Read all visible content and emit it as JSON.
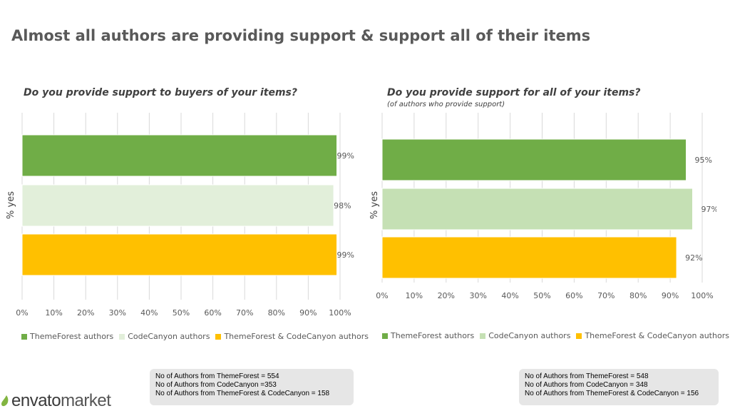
{
  "page_title": "Almost all authors are providing support & support all of their items",
  "colors": {
    "themeforest": "#70ad47",
    "codecanyon_left": "#e2efda",
    "codecanyon_right": "#c5e0b4",
    "both": "#ffc000",
    "grid": "#d9d9d9"
  },
  "logo": {
    "word1": "envato",
    "word2": "market"
  },
  "charts": [
    {
      "title": "Do you provide support to buyers of your items?",
      "subtitle": "",
      "ylabel": "% yes",
      "notes": [
        "No of Authors from ThemeForest = 554",
        "No of Authors from CodeCanyon =353",
        "No of Authors from ThemeForest & CodeCanyon = 158"
      ]
    },
    {
      "title": "Do you provide support for all of your items?",
      "subtitle": "(of authors who provide support)",
      "ylabel": "% yes",
      "notes": [
        "No of Authors from ThemeForest = 548",
        "No of Authors from CodeCanyon = 348",
        "No of Authors from ThemeForest & CodeCanyon = 156"
      ]
    }
  ],
  "chart_data": [
    {
      "type": "bar",
      "orientation": "horizontal",
      "title": "Do you provide support to buyers of your items?",
      "ylabel": "% yes",
      "xlim": [
        0,
        100
      ],
      "xticks": [
        "0%",
        "10%",
        "20%",
        "30%",
        "40%",
        "50%",
        "60%",
        "70%",
        "80%",
        "90%",
        "100%"
      ],
      "grid": true,
      "legend_position": "bottom",
      "series": [
        {
          "name": "ThemeForest authors",
          "value": 99,
          "label": "99%",
          "color": "#70ad47"
        },
        {
          "name": "CodeCanyon authors",
          "value": 98,
          "label": "98%",
          "color": "#e2efda"
        },
        {
          "name": "ThemeForest & CodeCanyon authors",
          "value": 99,
          "label": "99%",
          "color": "#ffc000"
        }
      ]
    },
    {
      "type": "bar",
      "orientation": "horizontal",
      "title": "Do you provide support for all of your items?",
      "subtitle": "(of authors who provide support)",
      "ylabel": "% yes",
      "xlim": [
        0,
        100
      ],
      "xticks": [
        "0%",
        "10%",
        "20%",
        "30%",
        "40%",
        "50%",
        "60%",
        "70%",
        "80%",
        "90%",
        "100%"
      ],
      "grid": true,
      "legend_position": "bottom",
      "series": [
        {
          "name": "ThemeForest authors",
          "value": 95,
          "label": "95%",
          "color": "#70ad47"
        },
        {
          "name": "CodeCanyon authors",
          "value": 97,
          "label": "97%",
          "color": "#c5e0b4"
        },
        {
          "name": "ThemeForest & CodeCanyon authors",
          "value": 92,
          "label": "92%",
          "color": "#ffc000"
        }
      ]
    }
  ]
}
